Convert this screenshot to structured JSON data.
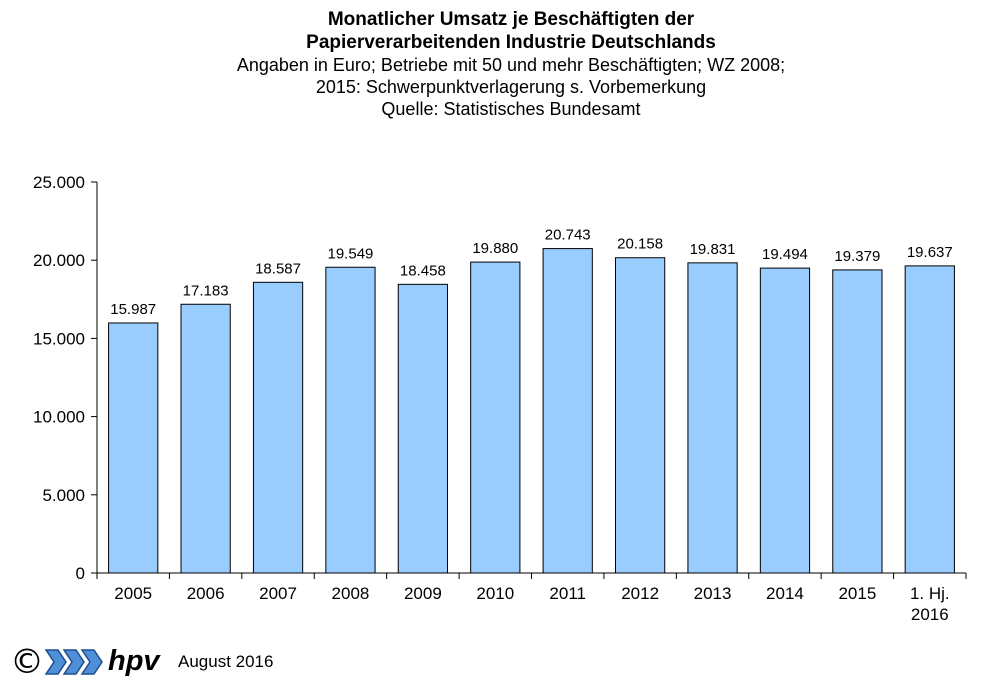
{
  "title_line1": "Monatlicher Umsatz je Beschäftigten der",
  "title_line2": "Papierverarbeitenden Industrie Deutschlands",
  "subtitle_lines": [
    "Angaben in Euro; Betriebe mit 50 und mehr Beschäftigten; WZ 2008;",
    "2015: Schwerpunktverlagerung s. Vorbemerkung",
    "Quelle: Statistisches Bundesamt"
  ],
  "footer": {
    "copyright_symbol": "©",
    "logo_text": "hpv",
    "date_text": "August 2016"
  },
  "colors": {
    "bar_fill": "#99ccff",
    "bar_stroke": "#000000",
    "logo_blue": "#4f8fd8"
  },
  "chart_data": {
    "type": "bar",
    "categories": [
      "2005",
      "2006",
      "2007",
      "2008",
      "2009",
      "2010",
      "2011",
      "2012",
      "2013",
      "2014",
      "2015",
      "1. Hj. 2016"
    ],
    "values": [
      15987,
      17183,
      18587,
      19549,
      18458,
      19880,
      20743,
      20158,
      19831,
      19494,
      19379,
      19637
    ],
    "value_labels": [
      "15.987",
      "17.183",
      "18.587",
      "19.549",
      "18.458",
      "19.880",
      "20.743",
      "20.158",
      "19.831",
      "19.494",
      "19.379",
      "19.637"
    ],
    "y_ticks": [
      0,
      5000,
      10000,
      15000,
      20000,
      25000
    ],
    "y_tick_labels": [
      "0",
      "5.000",
      "10.000",
      "15.000",
      "20.000",
      "25.000"
    ],
    "ylim": [
      0,
      25000
    ],
    "grid": false,
    "legend": "none"
  }
}
